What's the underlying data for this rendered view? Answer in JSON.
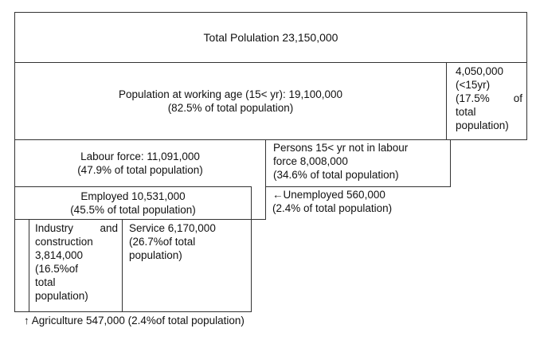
{
  "total": {
    "text": "Total Polulation 23,150,000"
  },
  "working_age": {
    "line1": "Population at working age (15< yr): 19,100,000",
    "line2": "(82.5% of total population)"
  },
  "under15": {
    "line1": "4,050,000",
    "line2": "(<15yr)",
    "line3": "(17.5%",
    "line3b": "of",
    "line4": "total",
    "line5": "population)"
  },
  "labour_force": {
    "line1": "Labour force: 11,091,000",
    "line2": "(47.9% of total population)"
  },
  "not_in_labour": {
    "line1": "Persons 15< yr not in labour",
    "line2": "force 8,008,000",
    "line3": "(34.6% of total population)"
  },
  "employed": {
    "line1": "Employed 10,531,000",
    "line2": "(45.5% of total population)"
  },
  "unemployed": {
    "line1": "←Unemployed 560,000",
    "line2": "(2.4% of total population)"
  },
  "industry": {
    "line1a": "Industry",
    "line1b": "and",
    "line2": "construction",
    "line3": "3,814,000",
    "line4": "(16.5%of",
    "line5": "total",
    "line6": "population)"
  },
  "service": {
    "line1": "Service 6,170,000",
    "line2": "(26.7%of total",
    "line3": "population)"
  },
  "agriculture": {
    "text": "↑ Agriculture 547,000 (2.4%of total population)"
  }
}
